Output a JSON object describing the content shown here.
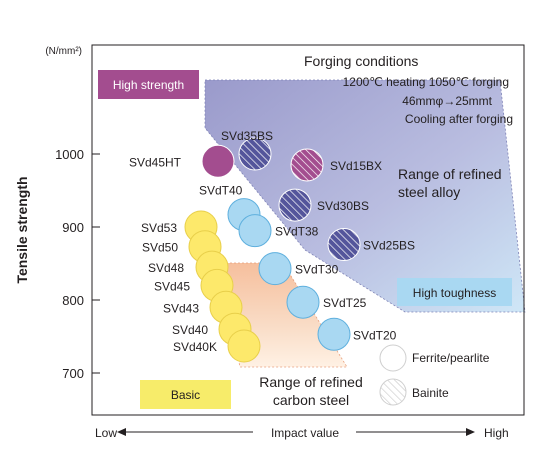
{
  "chart_data": {
    "type": "scatter",
    "title": "",
    "ylabel": "Tensile strength",
    "yunit": "(N/mm²)",
    "xlabel": "Impact value",
    "xlabel_low": "Low",
    "xlabel_high": "High",
    "yticks": [
      700,
      800,
      900,
      1000
    ],
    "ylim": [
      672,
      1125
    ],
    "xaxis": "qualitative (no numeric scale)",
    "grid": false,
    "conditions": {
      "heading": "Forging conditions",
      "line1": "1200℃ heating 1050℃ forging",
      "line2": "46mmφ→25mmt",
      "line3": "Cooling after forging"
    },
    "regions": {
      "steel_alloy": "Range of refined steel alloy",
      "steel_alloy_l1": "Range of refined",
      "steel_alloy_l2": "steel alloy",
      "carbon_steel": "Range of refined carbon steel",
      "carbon_steel_l1": "Range of refined",
      "carbon_steel_l2": "carbon steel"
    },
    "badges": {
      "high_strength": "High strength",
      "high_toughness": "High toughness",
      "basic": "Basic"
    },
    "legend": {
      "placement": "bottom-right",
      "ferrite": "Ferrite/pearlite",
      "bainite": "Bainite"
    },
    "colors": {
      "yellow": "#fde96b",
      "blue": "#a9d8f2",
      "purple": "#a34d8f",
      "navy": "#54559b",
      "alloy_band": "#9a9acb",
      "carbon_band": "#f6bf9d",
      "high_strength": "#a34d8f",
      "high_toughness": "#a9d8f2",
      "basic": "#f7ec6a"
    },
    "points": [
      {
        "name": "SVd45HT",
        "y": 990,
        "color": "purple",
        "hatch": false
      },
      {
        "name": "SVd35BS",
        "y": 1000,
        "color": "navy",
        "hatch": true
      },
      {
        "name": "SVd15BX",
        "y": 985,
        "color": "purple",
        "hatch": true
      },
      {
        "name": "SVdT40",
        "y": 917,
        "color": "blue",
        "hatch": false
      },
      {
        "name": "SVd30BS",
        "y": 930,
        "color": "navy",
        "hatch": true
      },
      {
        "name": "SVd53",
        "y": 900,
        "color": "yellow",
        "hatch": false
      },
      {
        "name": "SVdT38",
        "y": 895,
        "color": "blue",
        "hatch": false
      },
      {
        "name": "SVd25BS",
        "y": 876,
        "color": "navy",
        "hatch": true
      },
      {
        "name": "SVd50",
        "y": 873,
        "color": "yellow",
        "hatch": false
      },
      {
        "name": "SVd48",
        "y": 845,
        "color": "yellow",
        "hatch": false
      },
      {
        "name": "SVdT30",
        "y": 843,
        "color": "blue",
        "hatch": false
      },
      {
        "name": "SVd45",
        "y": 820,
        "color": "yellow",
        "hatch": false
      },
      {
        "name": "SVd43",
        "y": 790,
        "color": "yellow",
        "hatch": false
      },
      {
        "name": "SVdT25",
        "y": 797,
        "color": "blue",
        "hatch": false
      },
      {
        "name": "SVd40",
        "y": 760,
        "color": "yellow",
        "hatch": false
      },
      {
        "name": "SVdT20",
        "y": 753,
        "color": "blue",
        "hatch": false
      },
      {
        "name": "SVd40K",
        "y": 737,
        "color": "yellow",
        "hatch": false
      }
    ]
  }
}
